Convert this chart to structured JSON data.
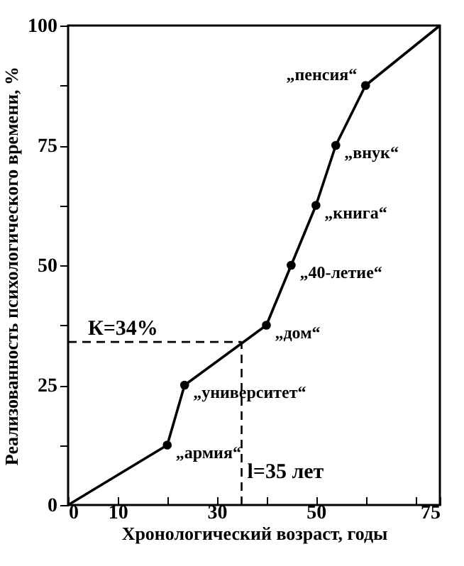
{
  "chart_data": {
    "type": "line",
    "xlabel": "Хронологический возраст, годы",
    "ylabel": "Реализованность психологического времени, %",
    "xlim": [
      0,
      75
    ],
    "ylim": [
      0,
      100
    ],
    "xticks": [
      0,
      10,
      {
        "value": 20,
        "label": null
      },
      30,
      {
        "value": 40,
        "label": null
      },
      50,
      {
        "value": 60,
        "label": null
      },
      {
        "value": 70,
        "label": null
      },
      75
    ],
    "yticks": [
      0,
      {
        "value": 12.5,
        "label": null
      },
      25,
      {
        "value": 37.5,
        "label": null
      },
      50,
      {
        "value": 62.5,
        "label": null
      },
      75,
      {
        "value": 87.5,
        "label": null
      },
      100
    ],
    "grid": false,
    "series": [
      {
        "color": "#000000",
        "marker": "none",
        "x": [
          0,
          20,
          23.5,
          40,
          45,
          50,
          54,
          60,
          75
        ],
        "values": [
          0,
          12.5,
          25,
          37.5,
          50,
          62.5,
          75,
          87.5,
          100
        ]
      },
      {
        "type": "scatter",
        "color": "#000000",
        "marker": "circle",
        "x": [
          20,
          23.5,
          40,
          45,
          50,
          54,
          60
        ],
        "values": [
          12.5,
          25,
          37.5,
          50,
          62.5,
          75,
          87.5
        ]
      }
    ],
    "ref_lines": [
      {
        "axis": "y",
        "value": 34,
        "label": "К=34%",
        "line_style": "dashed"
      },
      {
        "axis": "x",
        "value": 35,
        "label": "l=35 лет",
        "line_style": "dashed"
      }
    ],
    "annotations": [
      {
        "text": "„армия“",
        "x": 20,
        "y": 12.5
      },
      {
        "text": "„университет“",
        "x": 23.5,
        "y": 25
      },
      {
        "text": "„дом“",
        "x": 40,
        "y": 37.5
      },
      {
        "text": "„40-летие“",
        "x": 45,
        "y": 50
      },
      {
        "text": "„книга“",
        "x": 50,
        "y": 62.5
      },
      {
        "text": "„внук“",
        "x": 54,
        "y": 75
      },
      {
        "text": "„пенсия“",
        "x": 60,
        "y": 87.5
      }
    ]
  }
}
